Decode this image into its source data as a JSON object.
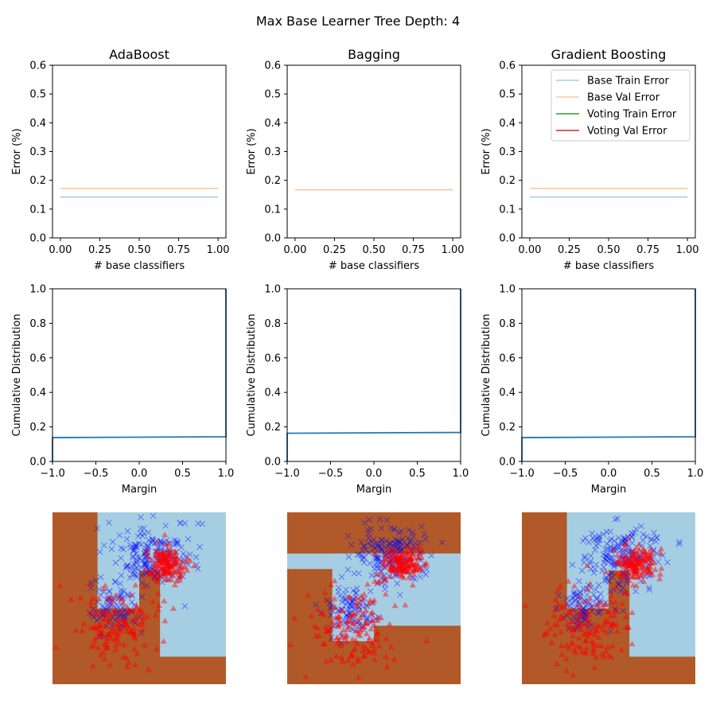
{
  "suptitle": "Max Base Learner Tree Depth: 4",
  "colors": {
    "base_train": "#a6cee3",
    "base_val": "#fdcb9e",
    "voting_train": "#2ca02c",
    "voting_val": "#d62728",
    "cdf": "#1f77b4",
    "region_a": "#a6cee3",
    "region_b": "#b15928",
    "marker_x": "#0000ff",
    "marker_tri": "#ff0000"
  },
  "chart_data": [
    {
      "type": "line",
      "title": "AdaBoost",
      "xlabel": "# base classifiers",
      "ylabel": "Error (%)",
      "xlim": [
        -0.05,
        1.05
      ],
      "ylim": [
        0,
        0.6
      ],
      "xticks": [
        "0.00",
        "0.25",
        "0.50",
        "0.75",
        "1.00"
      ],
      "yticks": [
        "0.0",
        "0.1",
        "0.2",
        "0.3",
        "0.4",
        "0.5",
        "0.6"
      ],
      "series": [
        {
          "name": "Base Train Error",
          "x": [
            0,
            1
          ],
          "y": [
            0.142,
            0.142
          ]
        },
        {
          "name": "Base Val Error",
          "x": [
            0,
            1
          ],
          "y": [
            0.172,
            0.172
          ]
        }
      ]
    },
    {
      "type": "line",
      "title": "Bagging",
      "xlabel": "# base classifiers",
      "ylabel": "Error (%)",
      "xlim": [
        -0.05,
        1.05
      ],
      "ylim": [
        0,
        0.6
      ],
      "xticks": [
        "0.00",
        "0.25",
        "0.50",
        "0.75",
        "1.00"
      ],
      "yticks": [
        "0.0",
        "0.1",
        "0.2",
        "0.3",
        "0.4",
        "0.5",
        "0.6"
      ],
      "series": [
        {
          "name": "Base Train Error",
          "x": [
            0,
            1
          ],
          "y": [
            0.167,
            0.167
          ]
        },
        {
          "name": "Base Val Error",
          "x": [
            0,
            1
          ],
          "y": [
            0.167,
            0.167
          ]
        }
      ]
    },
    {
      "type": "line",
      "title": "Gradient Boosting",
      "xlabel": "# base classifiers",
      "ylabel": "Error (%)",
      "xlim": [
        -0.05,
        1.05
      ],
      "ylim": [
        0,
        0.6
      ],
      "xticks": [
        "0.00",
        "0.25",
        "0.50",
        "0.75",
        "1.00"
      ],
      "yticks": [
        "0.0",
        "0.1",
        "0.2",
        "0.3",
        "0.4",
        "0.5",
        "0.6"
      ],
      "legend": [
        "Base Train Error",
        "Base Val Error",
        "Voting Train Error",
        "Voting Val Error"
      ],
      "legend_loc": "top-right",
      "series": [
        {
          "name": "Base Train Error",
          "x": [
            0,
            1
          ],
          "y": [
            0.142,
            0.142
          ]
        },
        {
          "name": "Base Val Error",
          "x": [
            0,
            1
          ],
          "y": [
            0.172,
            0.172
          ]
        },
        {
          "name": "Voting Train Error",
          "x": [],
          "y": []
        },
        {
          "name": "Voting Val Error",
          "x": [],
          "y": []
        }
      ]
    },
    {
      "type": "line",
      "xlabel": "Margin",
      "ylabel": "Cumulative Distribution",
      "xlim": [
        -1,
        1
      ],
      "ylim": [
        0,
        1
      ],
      "xticks": [
        "−1.0",
        "−0.5",
        "0.0",
        "0.5",
        "1.0"
      ],
      "yticks": [
        "0.0",
        "0.2",
        "0.4",
        "0.6",
        "0.8",
        "1.0"
      ],
      "series": [
        {
          "x": [
            -1,
            -1,
            1,
            1
          ],
          "y": [
            0,
            0.138,
            0.143,
            1
          ]
        }
      ]
    },
    {
      "type": "line",
      "xlabel": "Margin",
      "ylabel": "Cumulative Distribution",
      "xlim": [
        -1,
        1
      ],
      "ylim": [
        0,
        1
      ],
      "xticks": [
        "−1.0",
        "−0.5",
        "0.0",
        "0.5",
        "1.0"
      ],
      "yticks": [
        "0.0",
        "0.2",
        "0.4",
        "0.6",
        "0.8",
        "1.0"
      ],
      "series": [
        {
          "x": [
            -1,
            -1,
            1,
            1
          ],
          "y": [
            0,
            0.163,
            0.168,
            1
          ]
        }
      ]
    },
    {
      "type": "line",
      "xlabel": "Margin",
      "ylabel": "Cumulative Distribution",
      "xlim": [
        -1,
        1
      ],
      "ylim": [
        0,
        1
      ],
      "xticks": [
        "−1.0",
        "−0.5",
        "0.0",
        "0.5",
        "1.0"
      ],
      "yticks": [
        "0.0",
        "0.2",
        "0.4",
        "0.6",
        "0.8",
        "1.0"
      ],
      "series": [
        {
          "x": [
            -1,
            -1,
            1,
            1
          ],
          "y": [
            0,
            0.138,
            0.143,
            1
          ]
        }
      ]
    },
    {
      "type": "scatter",
      "background": "decision-regions",
      "xlim": [
        0,
        1
      ],
      "ylim": [
        0,
        1
      ],
      "regions_a": [
        [
          0.26,
          0.0,
          1.0,
          0.34
        ],
        [
          0.26,
          0.0,
          0.5,
          0.56
        ],
        [
          0.62,
          0.0,
          1.0,
          0.84
        ]
      ],
      "series": [
        {
          "marker": "x",
          "cluster": {
            "cx": 0.58,
            "cy": 0.25,
            "sx": 0.11,
            "sy": 0.09,
            "n": 190
          }
        },
        {
          "marker": "x",
          "cluster": {
            "cx": 0.36,
            "cy": 0.56,
            "sx": 0.07,
            "sy": 0.07,
            "n": 90
          }
        },
        {
          "marker": "triangle",
          "cluster": {
            "cx": 0.66,
            "cy": 0.3,
            "sx": 0.06,
            "sy": 0.05,
            "n": 150
          }
        },
        {
          "marker": "triangle",
          "cluster": {
            "cx": 0.38,
            "cy": 0.66,
            "sx": 0.13,
            "sy": 0.12,
            "n": 150
          }
        }
      ]
    },
    {
      "type": "scatter",
      "background": "decision-regions",
      "xlim": [
        0,
        1
      ],
      "ylim": [
        0,
        1
      ],
      "regions_a": [
        [
          0.0,
          0.24,
          1.0,
          0.33
        ],
        [
          0.26,
          0.24,
          0.5,
          0.75
        ],
        [
          0.5,
          0.24,
          1.0,
          0.66
        ]
      ],
      "series": [
        {
          "marker": "x",
          "cluster": {
            "cx": 0.58,
            "cy": 0.25,
            "sx": 0.11,
            "sy": 0.09,
            "n": 190
          }
        },
        {
          "marker": "x",
          "cluster": {
            "cx": 0.36,
            "cy": 0.56,
            "sx": 0.07,
            "sy": 0.07,
            "n": 90
          }
        },
        {
          "marker": "triangle",
          "cluster": {
            "cx": 0.66,
            "cy": 0.3,
            "sx": 0.06,
            "sy": 0.05,
            "n": 150
          }
        },
        {
          "marker": "triangle",
          "cluster": {
            "cx": 0.38,
            "cy": 0.66,
            "sx": 0.13,
            "sy": 0.12,
            "n": 150
          }
        }
      ]
    },
    {
      "type": "scatter",
      "background": "decision-regions",
      "xlim": [
        0,
        1
      ],
      "ylim": [
        0,
        1
      ],
      "regions_a": [
        [
          0.26,
          0.0,
          1.0,
          0.34
        ],
        [
          0.26,
          0.0,
          0.5,
          0.56
        ],
        [
          0.62,
          0.0,
          1.0,
          0.84
        ]
      ],
      "series": [
        {
          "marker": "x",
          "cluster": {
            "cx": 0.58,
            "cy": 0.25,
            "sx": 0.11,
            "sy": 0.09,
            "n": 190
          }
        },
        {
          "marker": "x",
          "cluster": {
            "cx": 0.36,
            "cy": 0.56,
            "sx": 0.07,
            "sy": 0.07,
            "n": 90
          }
        },
        {
          "marker": "triangle",
          "cluster": {
            "cx": 0.66,
            "cy": 0.3,
            "sx": 0.06,
            "sy": 0.05,
            "n": 150
          }
        },
        {
          "marker": "triangle",
          "cluster": {
            "cx": 0.38,
            "cy": 0.66,
            "sx": 0.13,
            "sy": 0.12,
            "n": 150
          }
        }
      ]
    }
  ]
}
